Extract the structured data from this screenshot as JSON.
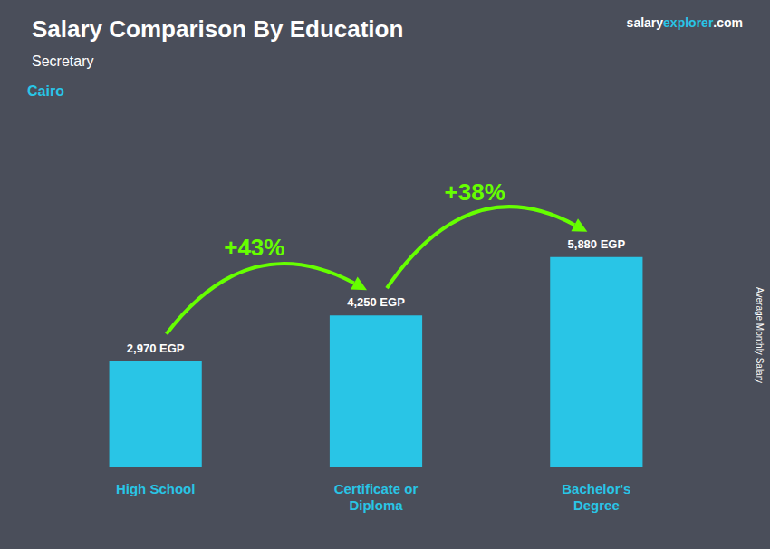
{
  "chart_data": {
    "type": "bar",
    "title": "Salary Comparison By Education",
    "subtitle": "Secretary",
    "categories": [
      "High School",
      "Certificate or\nDiploma",
      "Bachelor's\nDegree"
    ],
    "values": [
      2970,
      4250,
      5880
    ],
    "value_labels": [
      "2,970 EGP",
      "4,250 EGP",
      "5,880 EGP"
    ],
    "data_labels": true,
    "color": "#29c5e6",
    "ylabel": "Average Monthly Salary",
    "ylim": [
      0,
      8000
    ],
    "grid": false,
    "tick_labels": "x",
    "annotations": [
      {
        "text": "Cairo",
        "color": "#29c5e6"
      },
      {
        "text": "salary",
        "color": "#ffffff"
      },
      {
        "text": "explorer",
        "color": "#29c5e6"
      },
      {
        "text": ".com",
        "color": "#ffffff"
      },
      {
        "text": "+43%",
        "color": "#66ff00"
      },
      {
        "text": "+38%",
        "color": "#66ff00"
      }
    ]
  }
}
